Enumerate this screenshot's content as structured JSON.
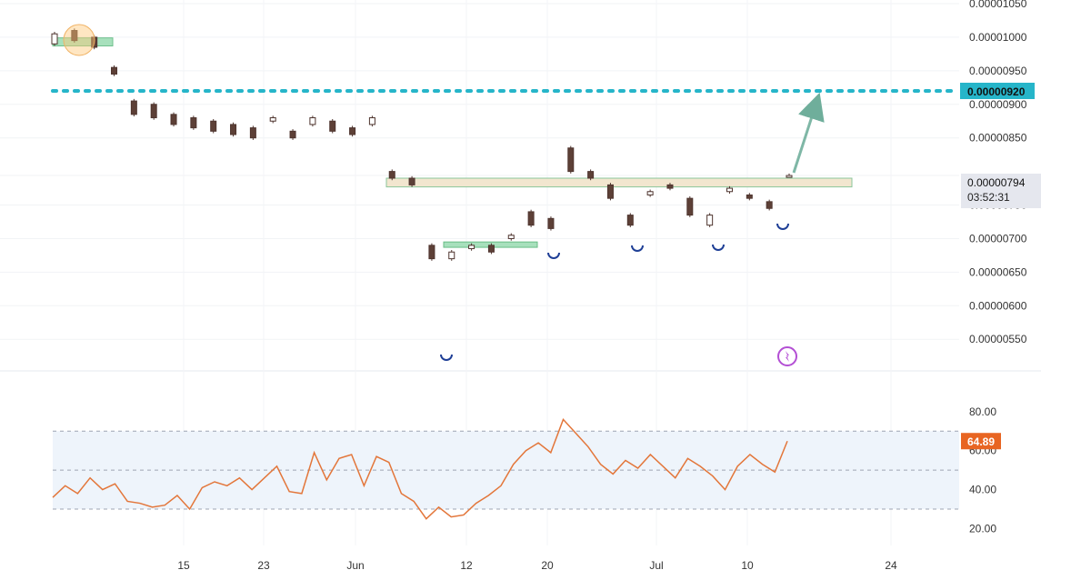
{
  "chart_data": [
    {
      "type": "candlestick",
      "pane": "price",
      "y_axis": {
        "min": 5.3e-06,
        "max": 1.05e-05,
        "ticks": [
          "0.00001050",
          "0.00001000",
          "0.00000950",
          "0.00000900",
          "0.00000850",
          "0.00000794",
          "0.00000750",
          "0.00000700",
          "0.00000650",
          "0.00000600",
          "0.00000550"
        ]
      },
      "x_axis": {
        "labels": [
          "15",
          "23",
          "Jun",
          "12",
          "20",
          "Jul",
          "10",
          "24"
        ]
      },
      "price_path": [
        [
          9.9e-06,
          1.005e-05
        ],
        [
          1.01e-05,
          9.95e-06
        ],
        [
          1e-05,
          9.85e-06
        ],
        [
          9.55e-06,
          9.45e-06
        ],
        [
          9.05e-06,
          8.85e-06
        ],
        [
          9e-06,
          8.8e-06
        ],
        [
          8.85e-06,
          8.7e-06
        ],
        [
          8.8e-06,
          8.65e-06
        ],
        [
          8.75e-06,
          8.6e-06
        ],
        [
          8.7e-06,
          8.55e-06
        ],
        [
          8.65e-06,
          8.5e-06
        ],
        [
          8.75e-06,
          8.8e-06
        ],
        [
          8.6e-06,
          8.5e-06
        ],
        [
          8.7e-06,
          8.8e-06
        ],
        [
          8.75e-06,
          8.6e-06
        ],
        [
          8.65e-06,
          8.55e-06
        ],
        [
          8.7e-06,
          8.8e-06
        ],
        [
          8e-06,
          7.9e-06
        ],
        [
          7.9e-06,
          7.8e-06
        ],
        [
          6.9e-06,
          6.7e-06
        ],
        [
          6.7e-06,
          6.8e-06
        ],
        [
          6.85e-06,
          6.9e-06
        ],
        [
          6.9e-06,
          6.8e-06
        ],
        [
          7e-06,
          7.05e-06
        ],
        [
          7.4e-06,
          7.2e-06
        ],
        [
          7.3e-06,
          7.15e-06
        ],
        [
          8.35e-06,
          8e-06
        ],
        [
          8e-06,
          7.9e-06
        ],
        [
          7.8e-06,
          7.6e-06
        ],
        [
          7.35e-06,
          7.2e-06
        ],
        [
          7.65e-06,
          7.7e-06
        ],
        [
          7.8e-06,
          7.75e-06
        ],
        [
          7.6e-06,
          7.35e-06
        ],
        [
          7.2e-06,
          7.35e-06
        ],
        [
          7.7e-06,
          7.75e-06
        ],
        [
          7.65e-06,
          7.6e-06
        ],
        [
          7.55e-06,
          7.45e-06
        ],
        [
          7.94e-06,
          7.94e-06
        ]
      ],
      "levels": [
        {
          "name": "target",
          "value": 9.2e-06,
          "label": "0.00000920",
          "color": "#26b5c9"
        },
        {
          "name": "resistance-zone",
          "from": 7.77e-06,
          "to": 7.9e-06,
          "color": "#f2e6cf"
        },
        {
          "name": "start-zone",
          "from": 9.87e-06,
          "to": 9.99e-06,
          "color": "#a7e0bc"
        },
        {
          "name": "support-zone",
          "from": 6.87e-06,
          "to": 6.95e-06,
          "color": "#a7e0bc"
        }
      ],
      "markers": [
        "arc-low-1",
        "arc-low-2",
        "arc-low-3",
        "arc-low-4",
        "arc-low-5"
      ],
      "last_price": {
        "value": "0.00000794",
        "countdown": "03:52:31"
      },
      "candle_colors": {
        "up": "#ffffff",
        "down": "#5d4037",
        "border": "#4e342e"
      }
    },
    {
      "type": "line",
      "pane": "rsi",
      "y_axis": {
        "min": 16,
        "max": 86,
        "ticks": [
          "80.00",
          "60.00",
          "40.00",
          "20.00"
        ]
      },
      "bands": [
        70,
        50,
        30
      ],
      "last_value": "64.89",
      "color": "#e3763a",
      "values": [
        36,
        42,
        38,
        46,
        40,
        43,
        34,
        33,
        31,
        32,
        37,
        30,
        41,
        44,
        42,
        46,
        40,
        46,
        52,
        39,
        38,
        59,
        45,
        56,
        58,
        42,
        57,
        54,
        38,
        34,
        25,
        31,
        26,
        27,
        33,
        37,
        42,
        53,
        60,
        64,
        59,
        76,
        69,
        62,
        53,
        48,
        55,
        51,
        58,
        52,
        46,
        56,
        52,
        47,
        40,
        52,
        58,
        53,
        49,
        64.89
      ]
    }
  ]
}
